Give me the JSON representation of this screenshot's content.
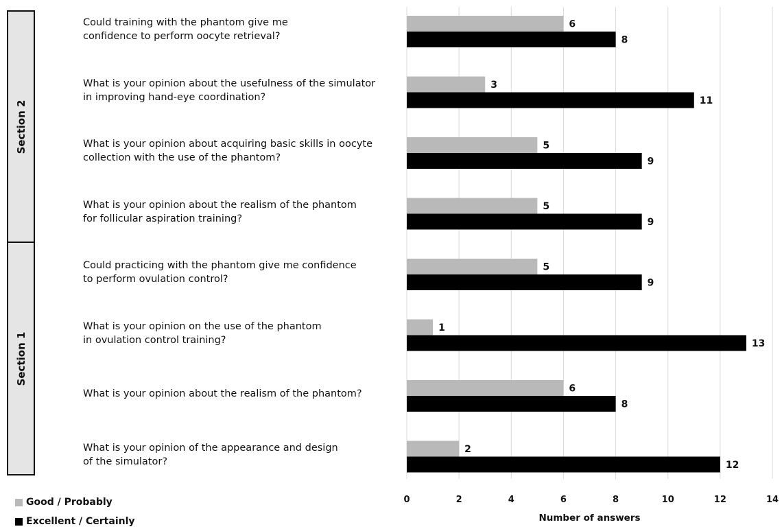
{
  "chart_data": {
    "type": "bar",
    "orientation": "horizontal",
    "categories": [
      "Could training with the phantom give me\nconfidence to perform oocyte retrieval?",
      "What is your opinion about the usefulness of the simulator\nin improving hand-eye coordination?",
      "What is your opinion about acquiring basic skills in oocyte\ncollection with the use of the phantom?",
      "What is your opinion about the realism of the phantom\nfor follicular aspiration training?",
      "Could practicing with the phantom give me confidence\nto perform ovulation control?",
      "What is your opinion on the use of the phantom\nin ovulation control training?",
      "What is your opinion about the realism of the phantom?",
      "What is your opinion of the appearance and design\nof the simulator?"
    ],
    "series": [
      {
        "name": "Good / Probably",
        "color": "#b9b9b9",
        "values": [
          6,
          3,
          5,
          5,
          5,
          1,
          6,
          2
        ]
      },
      {
        "name": "Excellent / Certainly",
        "color": "#000000",
        "values": [
          8,
          11,
          9,
          9,
          9,
          13,
          8,
          12
        ]
      }
    ],
    "sections": [
      {
        "label": "Section 2",
        "categories": [
          0,
          1,
          2,
          3
        ]
      },
      {
        "label": "Section 1",
        "categories": [
          4,
          5,
          6,
          7
        ]
      }
    ],
    "xlabel": "Number of answers",
    "xlim": [
      0,
      14
    ],
    "xticks": [
      0,
      2,
      4,
      6,
      8,
      10,
      12,
      14
    ],
    "grid": true,
    "legend": "bottom-left"
  }
}
